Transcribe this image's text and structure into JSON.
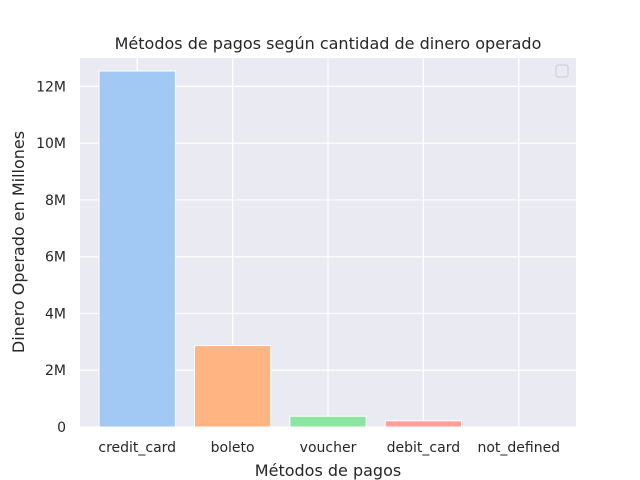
{
  "chart_data": {
    "type": "bar",
    "title": "Métodos de pagos según cantidad de dinero operado",
    "xlabel": "Métodos de pagos",
    "ylabel": "Dinero Operado en Millones",
    "categories": [
      "credit_card",
      "boleto",
      "voucher",
      "debit_card",
      "not_defined"
    ],
    "values": [
      12542084,
      2869361,
      379437,
      218002,
      0
    ],
    "bar_colors": [
      "#a1c9f4",
      "#ffb482",
      "#8de5a1",
      "#ff9f9b",
      "#d0bbff"
    ],
    "ylim": [
      0,
      13000000
    ],
    "yticks": [
      0,
      2000000,
      4000000,
      6000000,
      8000000,
      10000000,
      12000000
    ],
    "ytick_labels": [
      "0",
      "2M",
      "4M",
      "6M",
      "8M",
      "10M",
      "12M"
    ],
    "grid": true,
    "legend": {
      "placement": "top-right",
      "entries": []
    },
    "colors": {
      "plot_background": "#eaeaf2",
      "grid": "#ffffff",
      "text": "#262626"
    }
  }
}
